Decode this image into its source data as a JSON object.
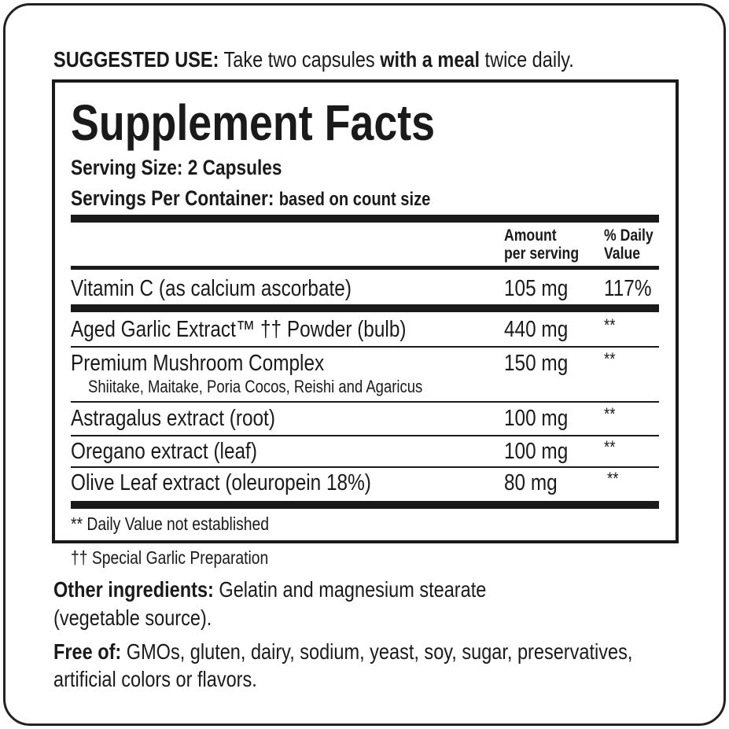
{
  "suggested_use": {
    "label": "SUGGESTED USE:",
    "text1": " Take two capsules ",
    "bold": "with a meal",
    "text2": " twice daily."
  },
  "facts": {
    "title": "Supplement Facts",
    "serving_size": "Serving Size: 2 Capsules",
    "servings_label": "Servings Per Container:",
    "servings_value": "based on count size",
    "header": {
      "amount": [
        "Amount",
        "per serving"
      ],
      "dv": [
        "% Daily",
        "Value"
      ]
    },
    "rows": [
      {
        "name": "Vitamin C (as calcium ascorbate)",
        "amount": "105 mg",
        "dv": "117%"
      },
      {
        "name": "Aged Garlic Extract™ †† Powder (bulb)",
        "amount": "440 mg",
        "dv": "**"
      },
      {
        "name": "Premium Mushroom Complex",
        "sub": "Shiitake, Maitake, Poria Cocos, Reishi and Agaricus",
        "amount": "150 mg",
        "dv": "**"
      },
      {
        "name": "Astragalus extract (root)",
        "amount": "100 mg",
        "dv": "**"
      },
      {
        "name": "Oregano extract (leaf)",
        "amount": "100 mg",
        "dv": "**"
      },
      {
        "name": "Olive Leaf extract (oleuropein 18%)",
        "amount": "80 mg",
        "dv": "**"
      }
    ],
    "footnote": "** Daily Value not established"
  },
  "garlic_note": "†† Special Garlic Preparation",
  "other": {
    "label": "Other ingredients:",
    "text1": " Gelatin and magnesium stearate",
    "text2": "(vegetable source)."
  },
  "free": {
    "label": "Free of:",
    "text1": " GMOs, gluten, dairy, sodium, yeast, soy, sugar, preservatives,",
    "text2": "artificial colors or flavors."
  }
}
